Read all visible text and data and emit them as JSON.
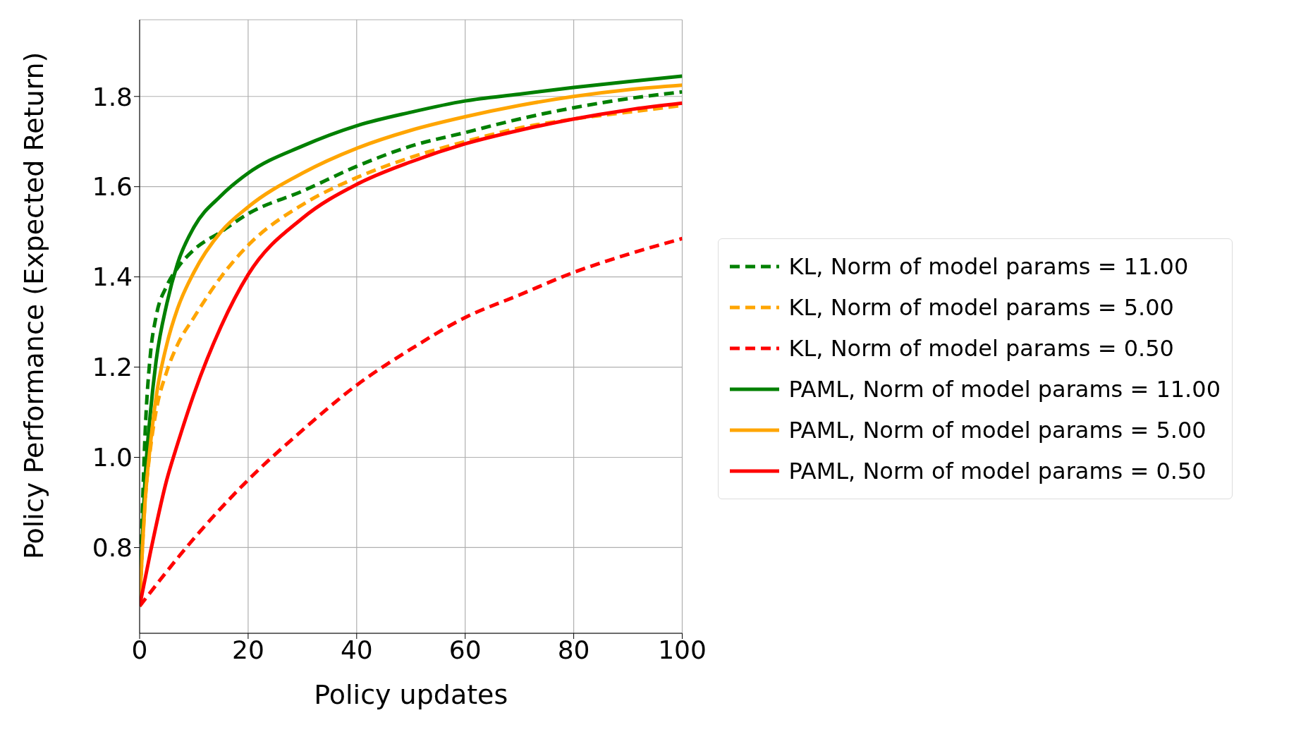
{
  "chart_data": {
    "type": "line",
    "xlabel": "Policy updates",
    "ylabel": "Policy Performance (Expected Return)",
    "x": [
      0,
      1,
      2,
      3,
      5,
      7,
      10,
      15,
      20,
      30,
      40,
      50,
      60,
      70,
      80,
      90,
      100
    ],
    "series": [
      {
        "name": "KL, Norm of model params = 11.00",
        "color": "#008000",
        "line_style": "dashed",
        "values": [
          0.67,
          1.05,
          1.23,
          1.31,
          1.38,
          1.42,
          1.46,
          1.5,
          1.54,
          1.59,
          1.645,
          1.69,
          1.72,
          1.75,
          1.775,
          1.795,
          1.81
        ]
      },
      {
        "name": "KL, Norm of model params = 5.00",
        "color": "#ffa500",
        "line_style": "dashed",
        "values": [
          0.67,
          0.9,
          1.02,
          1.1,
          1.19,
          1.25,
          1.31,
          1.4,
          1.47,
          1.56,
          1.62,
          1.665,
          1.7,
          1.73,
          1.75,
          1.765,
          1.78
        ]
      },
      {
        "name": "KL, Norm of model params = 0.50",
        "color": "#ff0000",
        "line_style": "dashed",
        "x": [
          0,
          10,
          20,
          30,
          40,
          50,
          60,
          70,
          80,
          90,
          100
        ],
        "values": [
          0.67,
          0.82,
          0.95,
          1.06,
          1.16,
          1.24,
          1.31,
          1.36,
          1.41,
          1.45,
          1.485
        ]
      },
      {
        "name": "PAML, Norm of model params = 11.00",
        "color": "#008000",
        "line_style": "solid",
        "values": [
          0.67,
          0.95,
          1.1,
          1.21,
          1.34,
          1.43,
          1.51,
          1.58,
          1.63,
          1.69,
          1.735,
          1.765,
          1.79,
          1.805,
          1.82,
          1.833,
          1.845
        ]
      },
      {
        "name": "PAML, Norm of model params = 5.00",
        "color": "#ffa500",
        "line_style": "solid",
        "values": [
          0.67,
          0.9,
          1.03,
          1.13,
          1.25,
          1.33,
          1.41,
          1.5,
          1.555,
          1.63,
          1.685,
          1.725,
          1.755,
          1.78,
          1.8,
          1.815,
          1.825
        ]
      },
      {
        "name": "PAML, Norm of model params = 0.50",
        "color": "#ff0000",
        "line_style": "solid",
        "x": [
          0,
          2,
          5,
          7,
          10,
          15,
          20,
          30,
          40,
          50,
          60,
          70,
          80,
          90,
          100
        ],
        "values": [
          0.67,
          0.79,
          0.95,
          1.03,
          1.14,
          1.29,
          1.405,
          1.53,
          1.605,
          1.655,
          1.695,
          1.725,
          1.75,
          1.77,
          1.785
        ]
      }
    ],
    "xlim": [
      0,
      100
    ],
    "xticks": [
      0,
      20,
      40,
      60,
      80,
      100
    ],
    "ylim": [
      0.61,
      1.97
    ],
    "yticks": [
      0.8,
      {
        "value": 1.0,
        "label": "1.0"
      },
      1.2,
      1.4,
      1.6,
      1.8
    ],
    "grid": true,
    "legend": "right",
    "marker": "none"
  }
}
